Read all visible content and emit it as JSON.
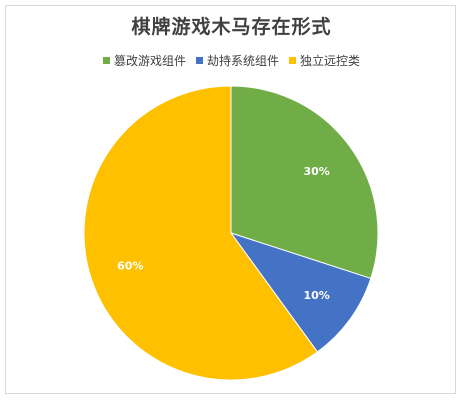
{
  "chart_data": {
    "type": "pie",
    "title": "棋牌游戏木马存在形式",
    "legend_position": "top",
    "series": [
      {
        "name": "篡改游戏组件",
        "value": 30,
        "label": "30%",
        "color": "#70ad47"
      },
      {
        "name": "劫持系统组件",
        "value": 10,
        "label": "10%",
        "color": "#4472c4"
      },
      {
        "name": "独立远控类",
        "value": 60,
        "label": "60%",
        "color": "#ffc000"
      }
    ]
  }
}
